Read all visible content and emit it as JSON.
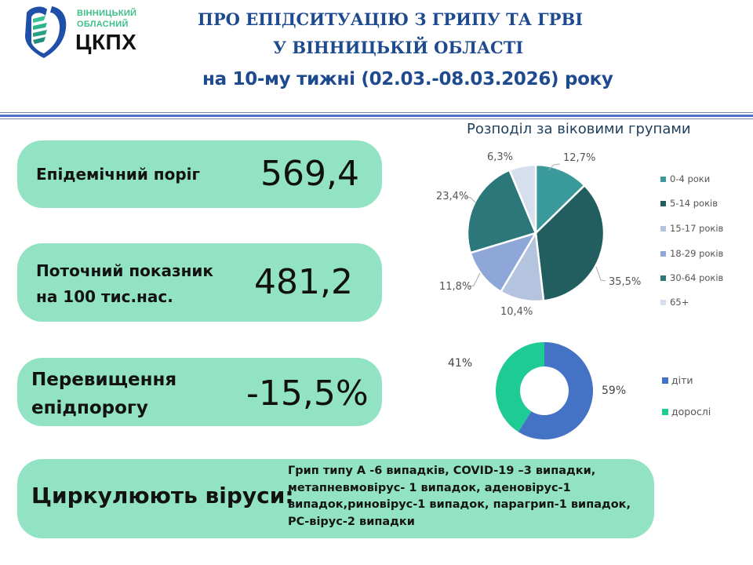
{
  "logo": {
    "line1": "ВІННИЦЬКИЙ",
    "line2": "ОБЛАСНИЙ",
    "name": "ЦКПХ",
    "icon": "shield-heart-icon"
  },
  "header": {
    "title_line1": "ПРО ЕПІДСИТУАЦІЮ З ГРИПУ ТА ГРВІ",
    "title_line2": "У ВІННИЦЬКІЙ ОБЛАСТІ",
    "title_line3": "на 10-му тижні (02.03.-08.03.2026) року"
  },
  "cards": {
    "threshold": {
      "label": "Епідемічний поріг",
      "value": "569,4"
    },
    "current": {
      "label_line1": "Поточний показник",
      "label_line2": "на 100 тис.нас.",
      "value": "481,2"
    },
    "excess": {
      "label_line1": "Перевищення",
      "label_line2": "епідпорогу",
      "value": "-15,5%"
    },
    "viruses": {
      "label": "Циркулюють віруси:",
      "lines": [
        "Грип типу А -6 випадків, COVID-19 –3 випадки,",
        "метапневмовірус- 1 випадок, аденовірус-1",
        "випадок,риновірус-1 випадок, парагрип-1 випадок,",
        "РС-вірус-2 випадки"
      ]
    }
  },
  "colors": {
    "card_bg": "#92e3c3",
    "title_blue": "#1e4a8f",
    "age_0_4": "#3a9a9b",
    "age_5_14": "#225e60",
    "age_15_17": "#b4c3de",
    "age_18_29": "#8ea7d8",
    "age_30_64": "#2c7779",
    "age_65_plus": "#d5dfee",
    "children": "#4472c4",
    "adults": "#1ecb95"
  },
  "chart_data": [
    {
      "type": "pie",
      "title": "Розподіл за віковими групами",
      "categories": [
        "0-4 роки",
        "5-14 років",
        "15-17 років",
        "18-29 років",
        "30-64 років",
        "65+"
      ],
      "values": [
        12.7,
        35.5,
        10.4,
        11.8,
        23.4,
        6.3
      ],
      "labels": [
        "12,7%",
        "35,5%",
        "10,4%",
        "11,8%",
        "23,4%",
        "6,3%"
      ],
      "legend_position": "right"
    },
    {
      "type": "pie",
      "subtype": "doughnut",
      "title": "",
      "categories": [
        "діти",
        "дорослі"
      ],
      "values": [
        59,
        41
      ],
      "labels": [
        "59%",
        "41%"
      ],
      "legend_position": "right"
    }
  ]
}
